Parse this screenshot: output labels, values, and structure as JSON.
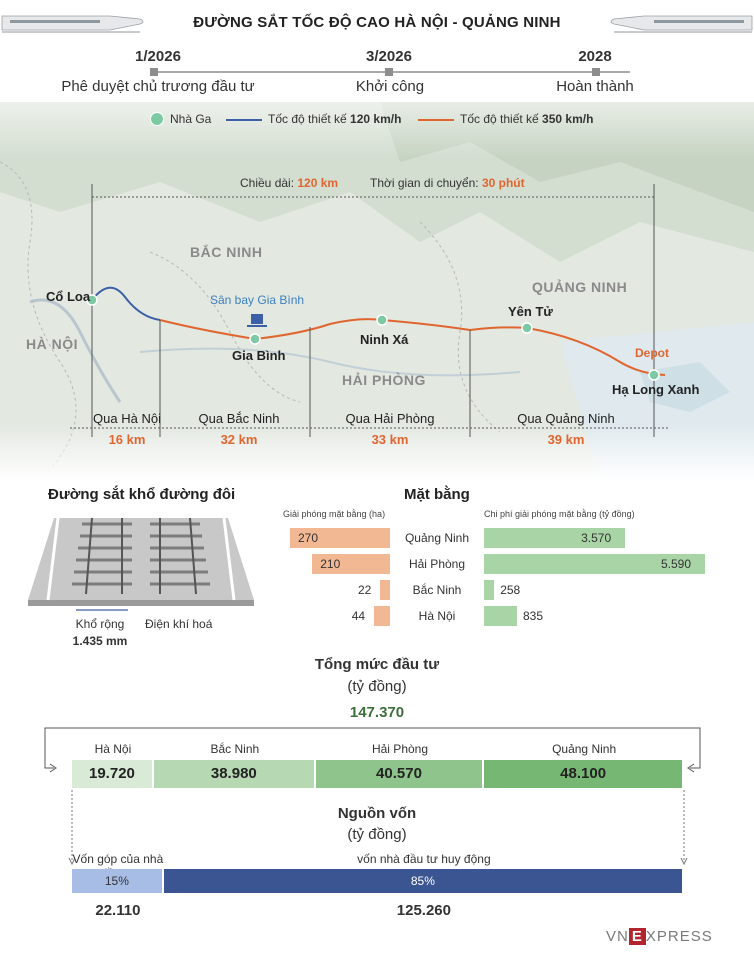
{
  "header": {
    "title": "ĐƯỜNG SẮT TỐC ĐỘ CAO HÀ NỘI - QUẢNG NINH"
  },
  "timeline": [
    {
      "date": "1/2026",
      "label": "Phê duyệt chủ trương đầu tư"
    },
    {
      "date": "3/2026",
      "label": "Khởi công"
    },
    {
      "date": "2028",
      "label": "Hoàn thành"
    }
  ],
  "legend": {
    "station": "Nhà Ga",
    "speed120_prefix": "Tốc độ thiết kế ",
    "speed120_value": "120 km/h",
    "speed350_prefix": "Tốc độ thiết kế ",
    "speed350_value": "350 km/h",
    "color_120": "#3d5fa8",
    "color_350": "#e0662f"
  },
  "route_info": {
    "length_label": "Chiều dài: ",
    "length_value": "120 km",
    "time_label": "Thời gian di chuyển: ",
    "time_value": "30 phút"
  },
  "map": {
    "regions": [
      "BẮC NINH",
      "HÀ NỘI",
      "HẢI PHÒNG",
      "QUẢNG NINH"
    ],
    "stations": [
      "Cổ Loa",
      "Gia Bình",
      "Ninh Xá",
      "Yên Tử",
      "Hạ Long Xanh"
    ],
    "airport": "Sân bay Gia Bình",
    "depot": "Depot"
  },
  "segments": [
    {
      "name": "Qua Hà Nội",
      "km": "16 km"
    },
    {
      "name": "Qua Bắc Ninh",
      "km": "32 km"
    },
    {
      "name": "Qua Hải Phòng",
      "km": "33 km"
    },
    {
      "name": "Qua Quảng Ninh",
      "km": "39 km"
    }
  ],
  "track": {
    "title": "Đường sắt khổ đường đôi",
    "gauge_label": "Khổ rộng",
    "gauge_value": "1.435 mm",
    "electrified": "Điện khí hoá"
  },
  "land": {
    "title": "Mặt bằng",
    "left_caption": "Giải phóng mặt bằng (ha)",
    "right_caption": "Chi phí giải phóng mặt bằng (tỷ đồng)",
    "rows": [
      {
        "province": "Quảng Ninh",
        "area": "270",
        "area_value": 270,
        "cost": "3.570",
        "cost_value": 3570
      },
      {
        "province": "Hải Phòng",
        "area": "210",
        "area_value": 210,
        "cost": "5.590",
        "cost_value": 5590
      },
      {
        "province": "Bắc Ninh",
        "area": "22",
        "area_value": 22,
        "cost": "258",
        "cost_value": 258
      },
      {
        "province": "Hà Nội",
        "area": "44",
        "area_value": 44,
        "cost": "835",
        "cost_value": 835
      }
    ]
  },
  "investment": {
    "title": "Tổng mức đầu tư",
    "unit": "(tỷ đồng)",
    "total": "147.370",
    "parts": [
      {
        "name": "Hà Nội",
        "value": "19.720",
        "amount": 19720,
        "color": "#d9ebd6"
      },
      {
        "name": "Bắc Ninh",
        "value": "38.980",
        "amount": 38980,
        "color": "#b6d9b3"
      },
      {
        "name": "Hải Phòng",
        "value": "40.570",
        "amount": 40570,
        "color": "#8fc58c"
      },
      {
        "name": "Quảng Ninh",
        "value": "48.100",
        "amount": 48100,
        "color": "#76b873"
      }
    ]
  },
  "funding": {
    "title": "Nguồn vốn",
    "unit": "(tỷ đồng)",
    "parts": [
      {
        "name": "Vốn góp của nhà đầu tư",
        "percent": "15%",
        "share": 15,
        "value": "22.110",
        "color": "#a8bde6"
      },
      {
        "name": "vốn nhà đầu tư huy động",
        "percent": "85%",
        "share": 85,
        "value": "125.260",
        "color": "#3a5591"
      }
    ]
  },
  "brand": {
    "logo_a": "VN",
    "logo_b": "E",
    "logo_c": "XPRESS"
  }
}
